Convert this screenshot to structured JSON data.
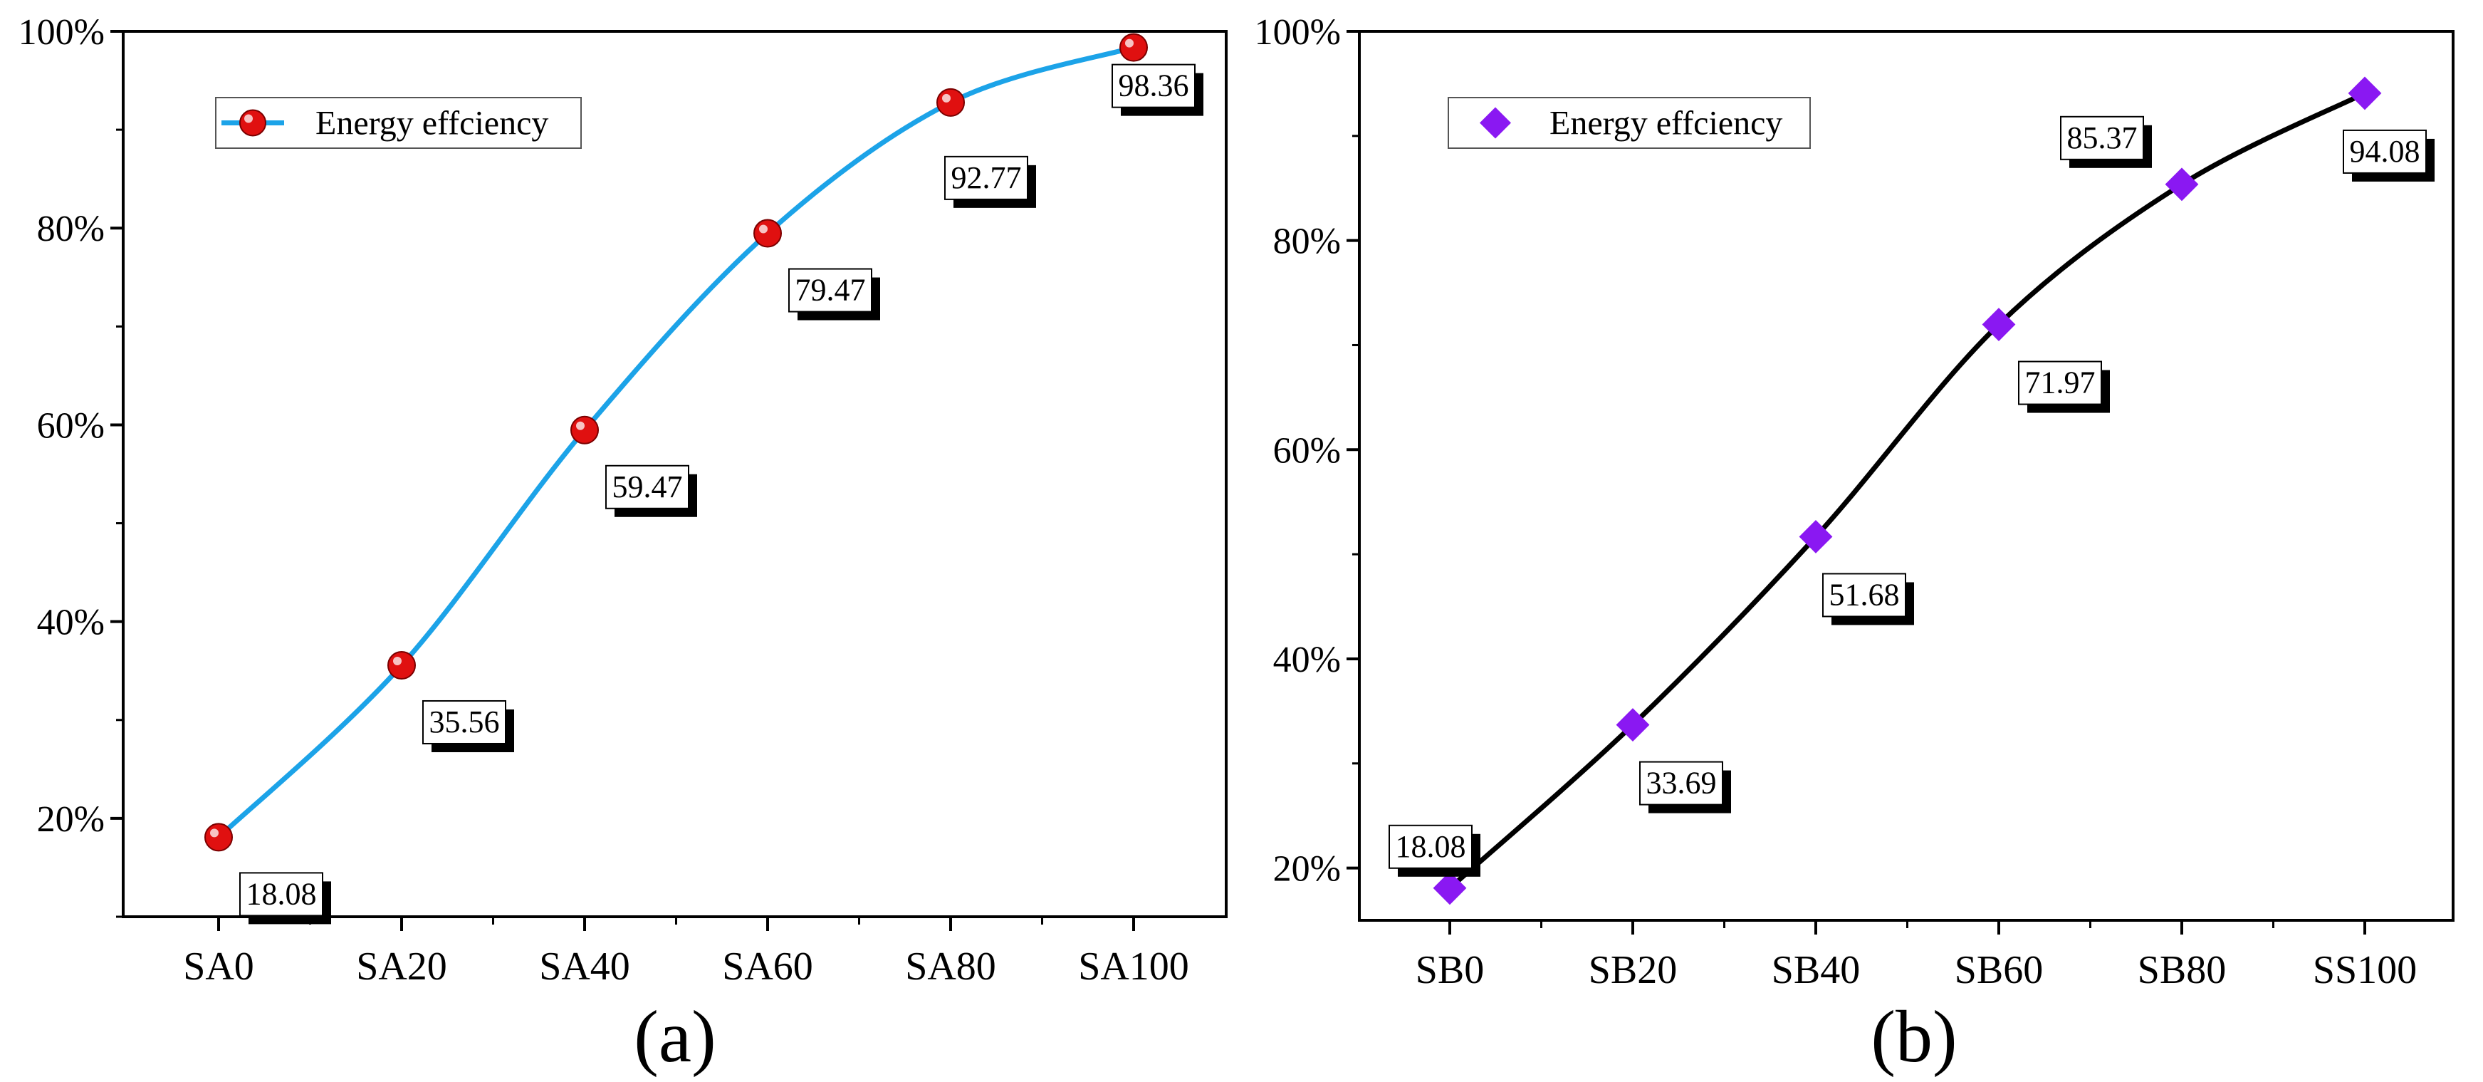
{
  "chart_data": [
    {
      "panel": "(a)",
      "type": "line",
      "categories": [
        "SA0",
        "SA20",
        "SA40",
        "SA60",
        "SA80",
        "SA100"
      ],
      "series": [
        {
          "name": "Energy effciency",
          "values": [
            18.08,
            35.56,
            59.47,
            79.47,
            92.77,
            98.36
          ],
          "line_color": "#1ca3e8",
          "marker": "sphere",
          "marker_color": "#e01010"
        }
      ],
      "data_labels": [
        "18.08",
        "35.56",
        "59.47",
        "79.47",
        "92.77",
        "98.36"
      ],
      "ylim": [
        10,
        100
      ],
      "yticks": [
        20,
        40,
        60,
        80,
        100
      ],
      "ytick_labels": [
        "20%",
        "40%",
        "60%",
        "80%",
        "100%"
      ],
      "xlabel": "",
      "ylabel": "",
      "title": "",
      "legend_position": "top-left",
      "grid": false
    },
    {
      "panel": "(b)",
      "type": "line",
      "categories": [
        "SB0",
        "SB20",
        "SB40",
        "SB60",
        "SB80",
        "SS100"
      ],
      "series": [
        {
          "name": "Energy effciency",
          "values": [
            18.08,
            33.69,
            51.68,
            71.97,
            85.37,
            94.08
          ],
          "line_color": "#000000",
          "marker": "diamond",
          "marker_color": "#8a18f2"
        }
      ],
      "data_labels": [
        "18.08",
        "33.69",
        "51.68",
        "71.97",
        "85.37",
        "94.08"
      ],
      "ylim": [
        15,
        100
      ],
      "yticks": [
        20,
        40,
        60,
        80,
        100
      ],
      "ytick_labels": [
        "20%",
        "40%",
        "60%",
        "80%",
        "100%"
      ],
      "xlabel": "",
      "ylabel": "",
      "title": "",
      "legend_position": "top-left",
      "grid": false
    }
  ]
}
